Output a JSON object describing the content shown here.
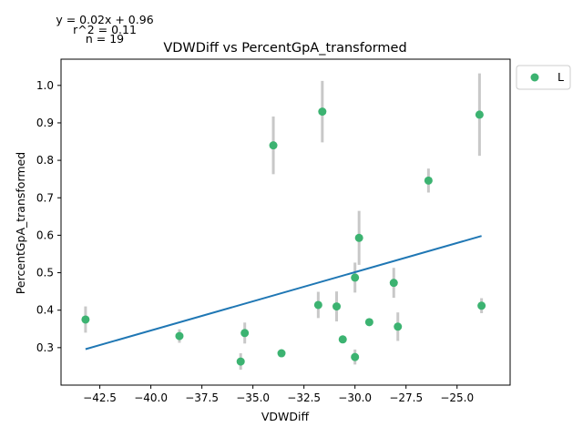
{
  "chart_data": {
    "type": "scatter",
    "title": "VDWDiff vs PercentGpA_transformed",
    "xlabel": "VDWDiff",
    "ylabel": "PercentGpA_transformed",
    "xlim": [
      -44.4,
      -22.4
    ],
    "ylim": [
      0.2,
      1.07
    ],
    "x_ticks": [
      -42.5,
      -40.0,
      -37.5,
      -35.0,
      -32.5,
      -30.0,
      -27.5,
      -25.0
    ],
    "x_tick_labels": [
      "−42.5",
      "−40.0",
      "−37.5",
      "−35.0",
      "−32.5",
      "−30.0",
      "−27.5",
      "−25.0"
    ],
    "y_ticks": [
      0.3,
      0.4,
      0.5,
      0.6,
      0.7,
      0.8,
      0.9,
      1.0
    ],
    "y_tick_labels": [
      "0.3",
      "0.4",
      "0.5",
      "0.6",
      "0.7",
      "0.8",
      "0.9",
      "1.0"
    ],
    "annotations": [
      "y = 0.02x + 0.96",
      "r^2 = 0.11",
      "n = 19"
    ],
    "legend": {
      "placement": "outside-right-top",
      "entries": [
        "L"
      ]
    },
    "colors": {
      "points": "#3cb371",
      "errorbars": "#c8c8c8",
      "fit_line": "#1f77b4"
    },
    "series": [
      {
        "name": "L",
        "points": [
          {
            "x": -43.2,
            "y": 0.375,
            "err": 0.035
          },
          {
            "x": -38.6,
            "y": 0.331,
            "err": 0.018
          },
          {
            "x": -35.6,
            "y": 0.263,
            "err": 0.022
          },
          {
            "x": -35.4,
            "y": 0.339,
            "err": 0.028
          },
          {
            "x": -34.0,
            "y": 0.84,
            "err": 0.077
          },
          {
            "x": -33.6,
            "y": 0.285,
            "err": 0.005
          },
          {
            "x": -31.8,
            "y": 0.414,
            "err": 0.035
          },
          {
            "x": -31.6,
            "y": 0.93,
            "err": 0.082
          },
          {
            "x": -30.9,
            "y": 0.41,
            "err": 0.04
          },
          {
            "x": -30.6,
            "y": 0.322,
            "err": 0.005
          },
          {
            "x": -30.0,
            "y": 0.275,
            "err": 0.02
          },
          {
            "x": -30.0,
            "y": 0.487,
            "err": 0.04
          },
          {
            "x": -29.8,
            "y": 0.593,
            "err": 0.072
          },
          {
            "x": -29.3,
            "y": 0.368,
            "err": 0.01
          },
          {
            "x": -28.1,
            "y": 0.473,
            "err": 0.04
          },
          {
            "x": -27.9,
            "y": 0.356,
            "err": 0.038
          },
          {
            "x": -26.4,
            "y": 0.746,
            "err": 0.032
          },
          {
            "x": -23.9,
            "y": 0.922,
            "err": 0.11
          },
          {
            "x": -23.8,
            "y": 0.412,
            "err": 0.02
          }
        ]
      }
    ],
    "fit_line": {
      "x": [
        -43.2,
        -23.8
      ],
      "y": [
        0.296,
        0.598
      ]
    }
  }
}
